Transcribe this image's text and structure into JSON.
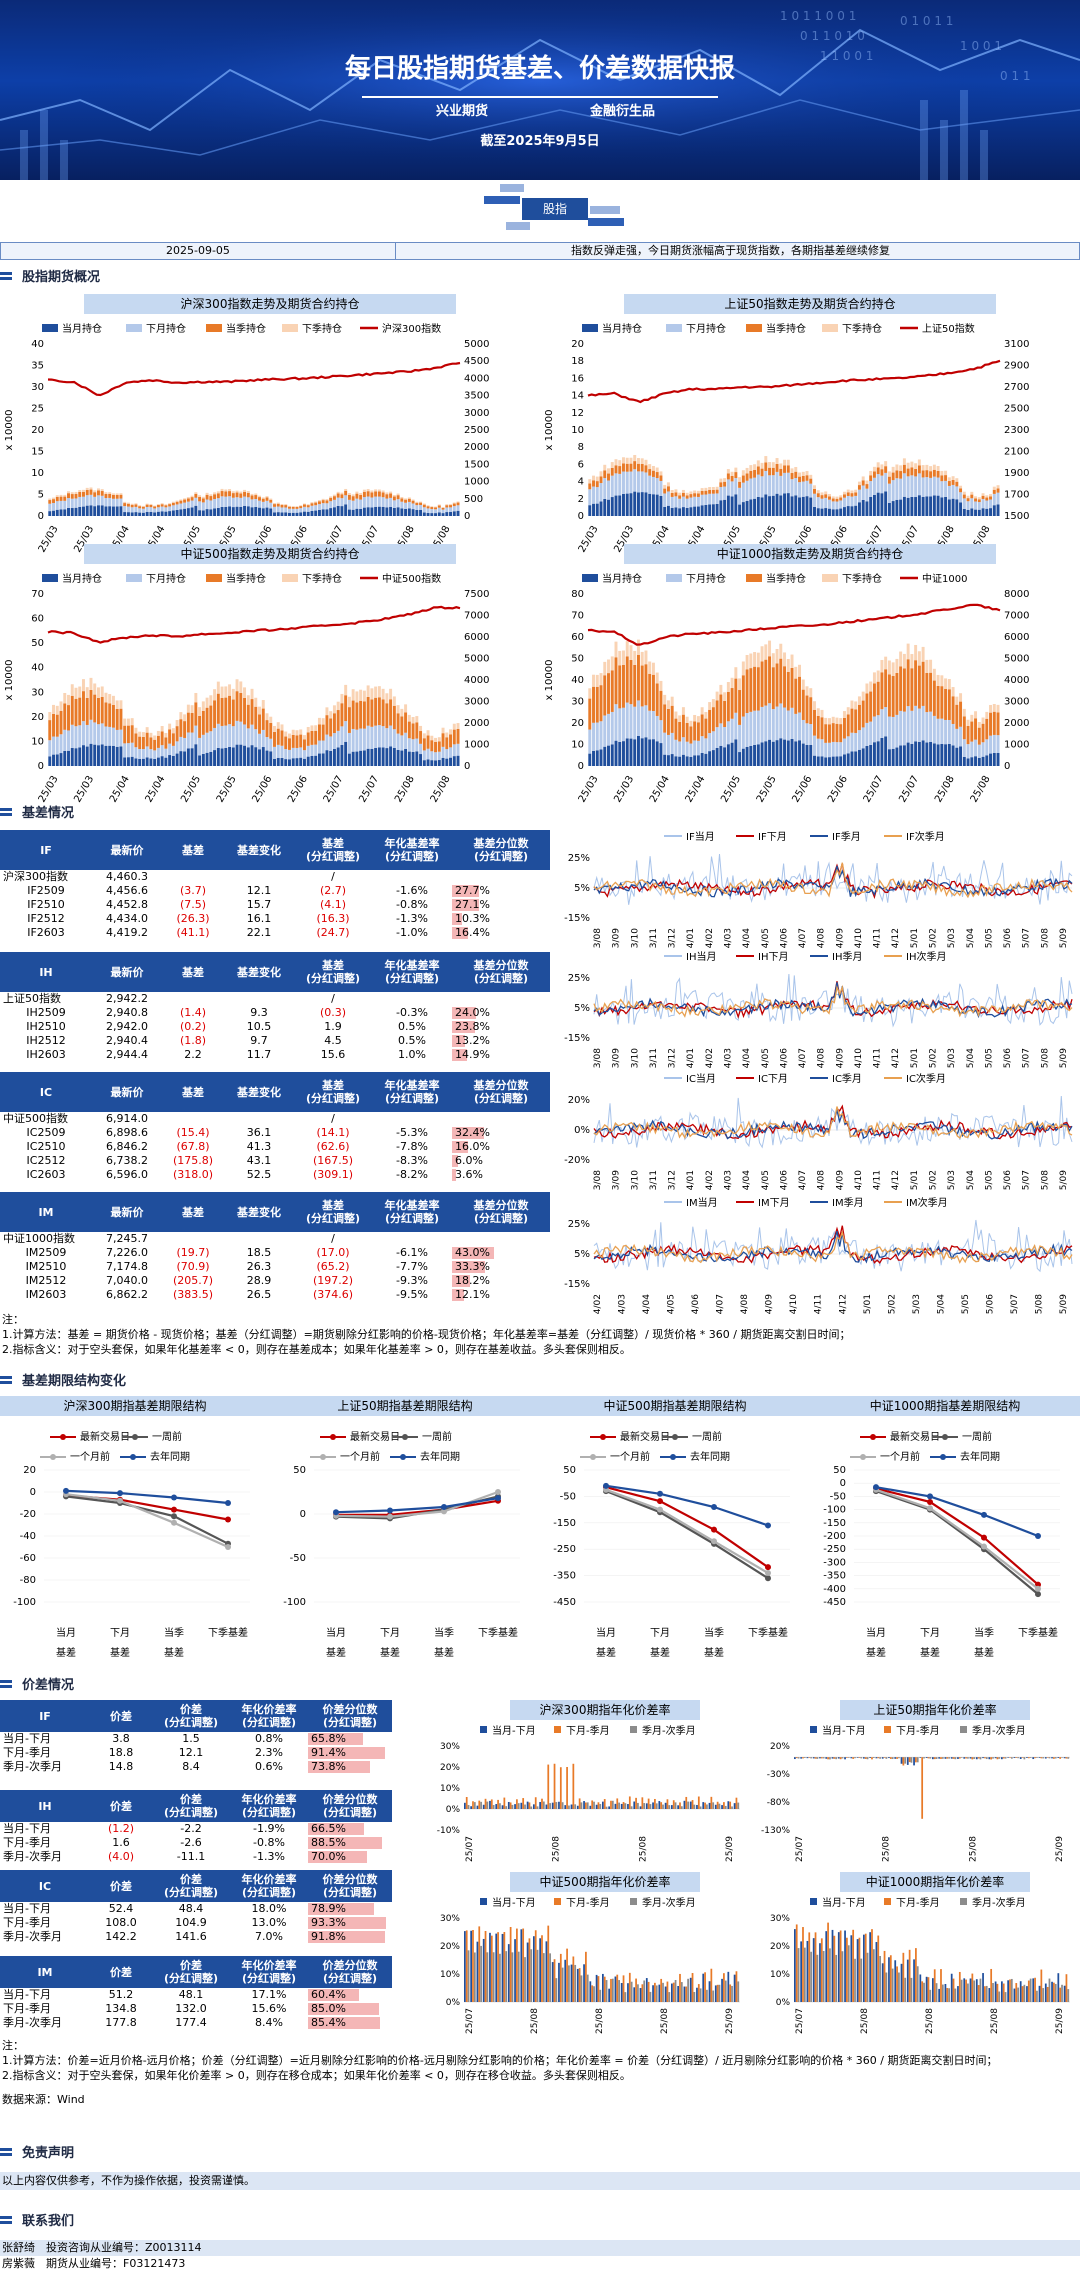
{
  "header": {
    "title": "每日股指期货基差、价差数据快报",
    "org1": "兴业期货",
    "org2": "金融衍生品",
    "date": "截至2025年9月5日",
    "tag": "股指"
  },
  "summary": {
    "date": "2025-09-05",
    "text": "指数反弹走强，今日期货涨幅高于现货指数，各期指基差继续修复"
  },
  "sections": {
    "overview": "股指期货概况",
    "basis": "基差情况",
    "term": "基差期限结构变化",
    "spread": "价差情况",
    "disclaimer": "免责声明",
    "contact": "联系我们"
  },
  "oi_charts": [
    {
      "title": "沪深300指数走势及期货合约持仓",
      "legend": [
        "当月持仓",
        "下月持仓",
        "当季持仓",
        "下季持仓",
        "沪深300指数"
      ],
      "ylabel": "x 10000",
      "left_ticks": [
        "0",
        "5",
        "10",
        "15",
        "20",
        "25",
        "30",
        "35",
        "40"
      ],
      "right_ticks": [
        "0",
        "500",
        "1000",
        "1500",
        "2000",
        "2500",
        "3000",
        "3500",
        "4000",
        "4500",
        "5000"
      ],
      "left_max": 40,
      "right_min": 0,
      "right_max": 5000,
      "stack": [
        2.2,
        2.0,
        1.0,
        0.4
      ],
      "idx": [
        3950,
        3900,
        3500,
        3880,
        3950,
        3880,
        3900,
        3900,
        3950,
        3980,
        4000,
        4050,
        4100,
        4150,
        4200,
        4300,
        4460
      ]
    },
    {
      "title": "上证50指数走势及期货合约持仓",
      "legend": [
        "当月持仓",
        "下月持仓",
        "当季持仓",
        "下季持仓",
        "上证50指数"
      ],
      "ylabel": "x 10000",
      "left_ticks": [
        "0",
        "2",
        "4",
        "6",
        "8",
        "10",
        "12",
        "14",
        "16",
        "18",
        "20"
      ],
      "right_ticks": [
        "1500",
        "1700",
        "1900",
        "2100",
        "2300",
        "2500",
        "2700",
        "2900",
        "3100"
      ],
      "left_max": 20,
      "right_min": 1500,
      "right_max": 3100,
      "stack": [
        2.5,
        2.2,
        0.8,
        0.6
      ],
      "idx": [
        2620,
        2640,
        2560,
        2640,
        2680,
        2680,
        2700,
        2700,
        2720,
        2740,
        2760,
        2770,
        2780,
        2800,
        2830,
        2870,
        2942
      ]
    },
    {
      "title": "中证500指数走势及期货合约持仓",
      "legend": [
        "当月持仓",
        "下月持仓",
        "当季持仓",
        "下季持仓",
        "中证500指数"
      ],
      "ylabel": "x 10000",
      "left_ticks": [
        "0",
        "10",
        "20",
        "30",
        "40",
        "50",
        "60",
        "70"
      ],
      "right_ticks": [
        "0",
        "1000",
        "2000",
        "3000",
        "4000",
        "5000",
        "6000",
        "7000",
        "7500"
      ],
      "left_max": 70,
      "right_min": 0,
      "right_max": 7500,
      "stack": [
        8,
        8,
        10,
        4
      ],
      "idx": [
        5850,
        5800,
        5400,
        5600,
        5700,
        5650,
        5750,
        5800,
        5900,
        5950,
        6050,
        6150,
        6250,
        6400,
        6600,
        6900,
        6914
      ]
    },
    {
      "title": "中证1000指数走势及期货合约持仓",
      "legend": [
        "当月持仓",
        "下月持仓",
        "当季持仓",
        "下季持仓",
        "中证1000"
      ],
      "ylabel": "x 10000",
      "left_ticks": [
        "0",
        "10",
        "20",
        "30",
        "40",
        "50",
        "60",
        "70",
        "80"
      ],
      "right_ticks": [
        "0",
        "1000",
        "2000",
        "3000",
        "4000",
        "5000",
        "6000",
        "7000",
        "8000"
      ],
      "left_max": 80,
      "right_min": 0,
      "right_max": 8000,
      "stack": [
        12,
        14,
        18,
        6
      ],
      "idx": [
        6300,
        6250,
        5600,
        6000,
        6150,
        6200,
        6300,
        6400,
        6500,
        6550,
        6700,
        6800,
        6950,
        7100,
        7300,
        7500,
        7245
      ]
    }
  ],
  "oi_xticks": [
    "25/03",
    "25/03",
    "25/04",
    "25/04",
    "25/05",
    "25/05",
    "25/06",
    "25/06",
    "25/07",
    "25/07",
    "25/08",
    "25/08"
  ],
  "oi_colors": [
    "#1f4e9c",
    "#b4c9ea",
    "#e87a28",
    "#f9d3b4",
    "#c00000"
  ],
  "basis_tables": [
    {
      "code": "IF",
      "index": "沪深300指数",
      "index_price": "4,460.3",
      "rows": [
        [
          "IF2509",
          "4,456.6",
          "(3.7)",
          "12.1",
          "(2.7)",
          "-1.6%",
          "27.7%"
        ],
        [
          "IF2510",
          "4,452.8",
          "(7.5)",
          "15.7",
          "(4.1)",
          "-0.8%",
          "27.1%"
        ],
        [
          "IF2512",
          "4,434.0",
          "(26.3)",
          "16.1",
          "(16.3)",
          "-1.3%",
          "10.3%"
        ],
        [
          "IF2603",
          "4,419.2",
          "(41.1)",
          "22.1",
          "(24.7)",
          "-1.0%",
          "16.4%"
        ]
      ],
      "pctv": [
        27.7,
        27.1,
        10.3,
        16.4
      ]
    },
    {
      "code": "IH",
      "index": "上证50指数",
      "index_price": "2,942.2",
      "rows": [
        [
          "IH2509",
          "2,940.8",
          "(1.4)",
          "9.3",
          "(0.3)",
          "-0.3%",
          "24.0%"
        ],
        [
          "IH2510",
          "2,942.0",
          "(0.2)",
          "10.5",
          "1.9",
          "0.5%",
          "23.8%"
        ],
        [
          "IH2512",
          "2,940.4",
          "(1.8)",
          "9.7",
          "4.5",
          "0.5%",
          "13.2%"
        ],
        [
          "IH2603",
          "2,944.4",
          "2.2",
          "11.7",
          "15.6",
          "1.0%",
          "14.9%"
        ]
      ],
      "pctv": [
        24.0,
        23.8,
        13.2,
        14.9
      ]
    },
    {
      "code": "IC",
      "index": "中证500指数",
      "index_price": "6,914.0",
      "rows": [
        [
          "IC2509",
          "6,898.6",
          "(15.4)",
          "36.1",
          "(14.1)",
          "-5.3%",
          "32.4%"
        ],
        [
          "IC2510",
          "6,846.2",
          "(67.8)",
          "41.3",
          "(62.6)",
          "-7.8%",
          "16.0%"
        ],
        [
          "IC2512",
          "6,738.2",
          "(175.8)",
          "43.1",
          "(167.5)",
          "-8.3%",
          "6.0%"
        ],
        [
          "IC2603",
          "6,596.0",
          "(318.0)",
          "52.5",
          "(309.1)",
          "-8.2%",
          "3.6%"
        ]
      ],
      "pctv": [
        32.4,
        16.0,
        6.0,
        3.6
      ]
    },
    {
      "code": "IM",
      "index": "中证1000指数",
      "index_price": "7,245.7",
      "rows": [
        [
          "IM2509",
          "7,226.0",
          "(19.7)",
          "18.5",
          "(17.0)",
          "-6.1%",
          "43.0%"
        ],
        [
          "IM2510",
          "7,174.8",
          "(70.9)",
          "26.3",
          "(65.2)",
          "-7.7%",
          "33.3%"
        ],
        [
          "IM2512",
          "7,040.0",
          "(205.7)",
          "28.9",
          "(197.2)",
          "-9.3%",
          "18.2%"
        ],
        [
          "IM2603",
          "6,862.2",
          "(383.5)",
          "26.5",
          "(374.6)",
          "-9.5%",
          "12.1%"
        ]
      ],
      "pctv": [
        43.0,
        33.3,
        18.2,
        12.1
      ]
    }
  ],
  "basis_headers": [
    "最新价",
    "基差",
    "基差变化",
    "基差",
    "(分红调整)",
    "年化基差率",
    "(分红调整)",
    "基差分位数",
    "(分红调整)"
  ],
  "basis_slash": "/",
  "basis_lines": [
    {
      "legend": [
        "IF当月",
        "IF下月",
        "IF季月",
        "IF次季月"
      ],
      "yticks": [
        "25%",
        "5%",
        "-15%"
      ],
      "xticks": [
        "23/08",
        "23/09",
        "23/10",
        "23/11",
        "23/12",
        "24/01",
        "24/02",
        "24/03",
        "24/04",
        "24/05",
        "24/06",
        "24/07",
        "24/08",
        "24/09",
        "24/10",
        "24/11",
        "24/12",
        "25/01",
        "25/02",
        "25/03",
        "25/04",
        "25/05",
        "25/06",
        "25/07",
        "25/08",
        "25/09"
      ]
    },
    {
      "legend": [
        "IH当月",
        "IH下月",
        "IH季月",
        "IH次季月"
      ],
      "yticks": [
        "25%",
        "5%",
        "-15%"
      ],
      "xticks": [
        "23/08",
        "23/09",
        "23/10",
        "23/11",
        "23/12",
        "24/01",
        "24/02",
        "24/03",
        "24/04",
        "24/05",
        "24/06",
        "24/07",
        "24/08",
        "24/09",
        "24/10",
        "24/11",
        "24/12",
        "25/01",
        "25/02",
        "25/03",
        "25/04",
        "25/05",
        "25/06",
        "25/07",
        "25/08",
        "25/09"
      ]
    },
    {
      "legend": [
        "IC当月",
        "IC下月",
        "IC季月",
        "IC次季月"
      ],
      "yticks": [
        "20%",
        "0%",
        "-20%"
      ],
      "xticks": [
        "23/08",
        "23/09",
        "23/10",
        "23/11",
        "23/12",
        "24/01",
        "24/02",
        "24/03",
        "24/04",
        "24/05",
        "24/06",
        "24/07",
        "24/08",
        "24/09",
        "24/10",
        "24/11",
        "24/12",
        "25/01",
        "25/02",
        "25/03",
        "25/04",
        "25/05",
        "25/06",
        "25/07",
        "25/08",
        "25/09"
      ]
    },
    {
      "legend": [
        "IM当月",
        "IM下月",
        "IM季月",
        "IM次季月"
      ],
      "yticks": [
        "25%",
        "5%",
        "-15%"
      ],
      "xticks": [
        "24/02",
        "24/03",
        "24/04",
        "24/05",
        "24/06",
        "24/07",
        "24/08",
        "24/09",
        "24/10",
        "24/11",
        "24/12",
        "25/01",
        "25/02",
        "25/03",
        "25/04",
        "25/05",
        "25/06",
        "25/07",
        "25/08",
        "25/09"
      ]
    }
  ],
  "basis_line_colors": [
    "#a9c4ea",
    "#c00000",
    "#1f4e9c",
    "#e8a050"
  ],
  "notes1": [
    "注：",
    "1.计算方法：基差 = 期货价格 - 现货价格；基差（分红调整）=期货剔除分红影响的价格-现货价格；年化基差率=基差（分红调整）/ 现货价格 * 360 / 期货距离交割日时间；",
    "2.指标含义：对于空头套保，如果年化基差率 < 0，则存在基差成本；如果年化基差率 > 0，则存在基差收益。多头套保则相反。"
  ],
  "term_charts": [
    {
      "title": "沪深300期指基差期限结构",
      "legend": [
        "最新交易日",
        "一周前",
        "一个月前",
        "去年同期"
      ],
      "yticks": [
        "20",
        "0",
        "-20",
        "-40",
        "-60",
        "-80",
        "-100"
      ],
      "ymin": -100,
      "ymax": 20,
      "series": [
        [
          -3,
          -7,
          -16,
          -25
        ],
        [
          -4,
          -10,
          -22,
          -47
        ],
        [
          -2,
          -8,
          -28,
          -50
        ],
        [
          1,
          -1,
          -5,
          -10
        ]
      ]
    },
    {
      "title": "上证50期指基差期限结构",
      "legend": [
        "最新交易日",
        "一周前",
        "一个月前",
        "去年同期"
      ],
      "yticks": [
        "50",
        "0",
        "-50",
        "-100"
      ],
      "ymin": -100,
      "ymax": 50,
      "series": [
        [
          -1,
          -1,
          5,
          15
        ],
        [
          -3,
          -5,
          5,
          20
        ],
        [
          -2,
          -3,
          3,
          25
        ],
        [
          2,
          4,
          8,
          18
        ]
      ]
    },
    {
      "title": "中证500期指基差期限结构",
      "legend": [
        "最新交易日",
        "一周前",
        "一个月前",
        "去年同期"
      ],
      "yticks": [
        "50",
        "-50",
        "-150",
        "-250",
        "-350",
        "-450"
      ],
      "ymin": -450,
      "ymax": 50,
      "series": [
        [
          -15,
          -68,
          -176,
          -318
        ],
        [
          -30,
          -110,
          -230,
          -360
        ],
        [
          -25,
          -100,
          -220,
          -340
        ],
        [
          -10,
          -40,
          -90,
          -160
        ]
      ]
    },
    {
      "title": "中证1000期指基差期限结构",
      "legend": [
        "最新交易日",
        "一周前",
        "一个月前",
        "去年同期"
      ],
      "yticks": [
        "50",
        "0",
        "-50",
        "-100",
        "-150",
        "-200",
        "-250",
        "-300",
        "-350",
        "-400",
        "-450"
      ],
      "ymin": -450,
      "ymax": 50,
      "series": [
        [
          -20,
          -71,
          -206,
          -384
        ],
        [
          -30,
          -100,
          -250,
          -420
        ],
        [
          -25,
          -95,
          -240,
          -400
        ],
        [
          -15,
          -50,
          -120,
          -200
        ]
      ]
    }
  ],
  "term_xlabels": [
    [
      "当月",
      "基差"
    ],
    [
      "下月",
      "基差"
    ],
    [
      "当季",
      "基差"
    ],
    [
      "下季基差",
      ""
    ]
  ],
  "term_colors": [
    "#c00000",
    "#555555",
    "#b0b0b0",
    "#1f4e9c"
  ],
  "spread_tables": [
    {
      "code": "IF",
      "rows": [
        [
          "当月-下月",
          "3.8",
          "1.5",
          "0.8%",
          "65.8%"
        ],
        [
          "下月-季月",
          "18.8",
          "12.1",
          "2.3%",
          "91.4%"
        ],
        [
          "季月-次季月",
          "14.8",
          "8.4",
          "0.6%",
          "73.8%"
        ]
      ],
      "pctv": [
        65.8,
        91.4,
        73.8
      ]
    },
    {
      "code": "IH",
      "rows": [
        [
          "当月-下月",
          "(1.2)",
          "-2.2",
          "-1.9%",
          "66.5%"
        ],
        [
          "下月-季月",
          "1.6",
          "-2.6",
          "-0.8%",
          "88.5%"
        ],
        [
          "季月-次季月",
          "(4.0)",
          "-11.1",
          "-1.3%",
          "70.0%"
        ]
      ],
      "pctv": [
        66.5,
        88.5,
        70.0
      ]
    },
    {
      "code": "IC",
      "rows": [
        [
          "当月-下月",
          "52.4",
          "48.4",
          "18.0%",
          "78.9%"
        ],
        [
          "下月-季月",
          "108.0",
          "104.9",
          "13.0%",
          "93.3%"
        ],
        [
          "季月-次季月",
          "142.2",
          "141.6",
          "7.0%",
          "91.8%"
        ]
      ],
      "pctv": [
        78.9,
        93.3,
        91.8
      ]
    },
    {
      "code": "IM",
      "rows": [
        [
          "当月-下月",
          "51.2",
          "48.1",
          "17.1%",
          "60.4%"
        ],
        [
          "下月-季月",
          "134.8",
          "132.0",
          "15.6%",
          "85.0%"
        ],
        [
          "季月-次季月",
          "177.8",
          "177.4",
          "8.4%",
          "85.4%"
        ]
      ],
      "pctv": [
        60.4,
        85.0,
        85.4
      ]
    }
  ],
  "spread_headers": [
    "价差",
    "价差",
    "(分红调整)",
    "年化价差率",
    "(分红调整)",
    "价差分位数",
    "(分红调整)"
  ],
  "spread_charts": [
    {
      "title": "沪深300期指年化价差率",
      "legend": [
        "当月-下月",
        "下月-季月",
        "季月-次季月"
      ],
      "yticks": [
        "30%",
        "20%",
        "10%",
        "0%",
        "-10%"
      ],
      "ymin": -10,
      "ymax": 30,
      "xticks": [
        "25/07",
        "25/08",
        "25/08",
        "25/09"
      ]
    },
    {
      "title": "上证50期指年化价差率",
      "legend": [
        "当月-下月",
        "下月-季月",
        "季月-次季月"
      ],
      "yticks": [
        "20%",
        "-30%",
        "-80%",
        "-130%"
      ],
      "ymin": -130,
      "ymax": 20,
      "xticks": [
        "25/07",
        "25/08",
        "25/08",
        "25/09"
      ]
    },
    {
      "title": "中证500期指年化价差率",
      "legend": [
        "当月-下月",
        "下月-季月",
        "季月-次季月"
      ],
      "yticks": [
        "30%",
        "20%",
        "10%",
        "0%"
      ],
      "ymin": 0,
      "ymax": 30,
      "xticks": [
        "25/07",
        "25/08",
        "25/08",
        "25/08",
        "25/09"
      ]
    },
    {
      "title": "中证1000期指年化价差率",
      "legend": [
        "当月-下月",
        "下月-季月",
        "季月-次季月"
      ],
      "yticks": [
        "30%",
        "20%",
        "10%",
        "0%"
      ],
      "ymin": 0,
      "ymax": 30,
      "xticks": [
        "25/07",
        "25/08",
        "25/08",
        "25/08",
        "25/09"
      ]
    }
  ],
  "spread_colors": [
    "#1f4e9c",
    "#e87a28",
    "#8c8c8c"
  ],
  "notes2": [
    "注：",
    "1.计算方法：价差=近月价格-远月价格；价差（分红调整）=近月剔除分红影响的价格-远月剔除分红影响的价格；年化价差率 = 价差（分红调整）/ 近月剔除分红影响的价格 * 360 / 期货距离交割日时间；",
    "2.指标含义：对于空头套保，如果年化价差率 > 0，则存在移仓成本；如果年化价差率 < 0，则存在移仓收益。多头套保则相反。"
  ],
  "source": "数据来源：Wind",
  "disclaimer_text": "以上内容仅供参考，不作为操作依据，投资需谨慎。",
  "contacts": [
    "张舒绮　投资咨询从业编号：Z0013114",
    "房紫薇　期货从业编号：F03121473"
  ]
}
